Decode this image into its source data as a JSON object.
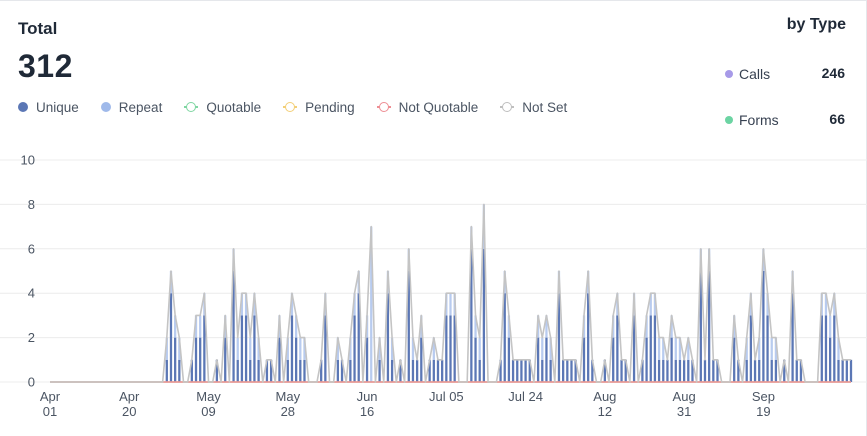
{
  "summary": {
    "label": "Total",
    "value": "312"
  },
  "by_type": {
    "title": "by Type",
    "items": [
      {
        "name": "Calls",
        "count": "246",
        "color": "#a79ae8"
      },
      {
        "name": "Forms",
        "count": "66",
        "color": "#6cd4a3"
      }
    ]
  },
  "legend": [
    {
      "label": "Unique",
      "color": "#5b77b5",
      "style": "dot"
    },
    {
      "label": "Repeat",
      "color": "#9fb9ea",
      "style": "dot"
    },
    {
      "label": "Quotable",
      "color": "#7fd6a2",
      "style": "ring"
    },
    {
      "label": "Pending",
      "color": "#f3cf77",
      "style": "ring"
    },
    {
      "label": "Not Quotable",
      "color": "#ee8e94",
      "style": "ring"
    },
    {
      "label": "Not Set",
      "color": "#bfbfbf",
      "style": "ring"
    }
  ],
  "chart_data": {
    "type": "bar",
    "yticks": [
      "10",
      "8",
      "6",
      "4",
      "2",
      "0"
    ],
    "ylim": [
      0,
      10
    ],
    "xticks": [
      {
        "day": 0,
        "line1": "Apr",
        "line2": "01"
      },
      {
        "day": 19,
        "line1": "Apr",
        "line2": "20"
      },
      {
        "day": 38,
        "line1": "May",
        "line2": "09"
      },
      {
        "day": 57,
        "line1": "May",
        "line2": "28"
      },
      {
        "day": 76,
        "line1": "Jun",
        "line2": "16"
      },
      {
        "day": 95,
        "line1": "Jul 05",
        "line2": ""
      },
      {
        "day": 114,
        "line1": "Jul 24",
        "line2": ""
      },
      {
        "day": 133,
        "line1": "Aug",
        "line2": "12"
      },
      {
        "day": 152,
        "line1": "Aug",
        "line2": "31"
      },
      {
        "day": 171,
        "line1": "Sep",
        "line2": "19"
      }
    ],
    "start_date": "Apr 01",
    "not_set_total": [
      0,
      0,
      0,
      0,
      0,
      0,
      0,
      0,
      0,
      0,
      0,
      0,
      0,
      0,
      0,
      0,
      0,
      0,
      0,
      0,
      0,
      0,
      0,
      0,
      0,
      0,
      0,
      0,
      2,
      5,
      3,
      2,
      0,
      0,
      1,
      3,
      3,
      4,
      0,
      0,
      1,
      0,
      3,
      0,
      6,
      2,
      4,
      4,
      2,
      4,
      2,
      0,
      1,
      1,
      0,
      3,
      0,
      2,
      4,
      3,
      2,
      2,
      0,
      0,
      0,
      1,
      4,
      0,
      0,
      2,
      1,
      0,
      2,
      4,
      5,
      0,
      3,
      7,
      0,
      2,
      0,
      5,
      2,
      0,
      1,
      0,
      6,
      2,
      1,
      3,
      0,
      1,
      2,
      1,
      1,
      4,
      4,
      4,
      0,
      0,
      0,
      7,
      3,
      2,
      8,
      0,
      0,
      0,
      1,
      5,
      3,
      1,
      1,
      1,
      1,
      1,
      0,
      3,
      2,
      3,
      2,
      0,
      5,
      1,
      1,
      1,
      1,
      0,
      3,
      5,
      1,
      0,
      0,
      1,
      0,
      3,
      4,
      1,
      1,
      0,
      4,
      0,
      1,
      3,
      4,
      4,
      2,
      2,
      1,
      3,
      2,
      2,
      1,
      2,
      1,
      0,
      6,
      1,
      6,
      1,
      1,
      0,
      0,
      0,
      3,
      1,
      0,
      2,
      4,
      1,
      2,
      6,
      4,
      2,
      2,
      0,
      1,
      0,
      5,
      1,
      1,
      0,
      0,
      0,
      0,
      4,
      4,
      3,
      4,
      2,
      1,
      1,
      1
    ],
    "unique": [
      0,
      0,
      0,
      0,
      0,
      0,
      0,
      0,
      0,
      0,
      0,
      0,
      0,
      0,
      0,
      0,
      0,
      0,
      0,
      0,
      0,
      0,
      0,
      0,
      0,
      0,
      0,
      0,
      1,
      4,
      2,
      1,
      0,
      0,
      1,
      2,
      2,
      3,
      0,
      0,
      1,
      0,
      2,
      0,
      5,
      1,
      3,
      3,
      1,
      3,
      1,
      0,
      1,
      1,
      0,
      2,
      0,
      1,
      3,
      2,
      1,
      1,
      0,
      0,
      0,
      1,
      3,
      0,
      0,
      1,
      1,
      0,
      1,
      3,
      4,
      0,
      2,
      0,
      0,
      1,
      0,
      4,
      1,
      0,
      1,
      0,
      5,
      1,
      1,
      2,
      0,
      1,
      1,
      1,
      1,
      3,
      3,
      3,
      0,
      0,
      0,
      6,
      2,
      1,
      6,
      0,
      0,
      0,
      1,
      4,
      2,
      1,
      1,
      1,
      1,
      1,
      0,
      2,
      1,
      2,
      1,
      0,
      4,
      1,
      1,
      1,
      1,
      0,
      2,
      4,
      1,
      0,
      0,
      1,
      0,
      2,
      3,
      1,
      1,
      0,
      3,
      0,
      1,
      2,
      3,
      3,
      1,
      1,
      1,
      2,
      1,
      1,
      1,
      1,
      1,
      0,
      5,
      1,
      5,
      1,
      1,
      0,
      0,
      0,
      2,
      1,
      0,
      1,
      3,
      1,
      1,
      5,
      3,
      1,
      1,
      0,
      1,
      0,
      4,
      1,
      1,
      0,
      0,
      0,
      0,
      3,
      3,
      2,
      3,
      1,
      1,
      1,
      1
    ],
    "repeat": [
      0,
      0,
      0,
      0,
      0,
      0,
      0,
      0,
      0,
      0,
      0,
      0,
      0,
      0,
      0,
      0,
      0,
      0,
      0,
      0,
      0,
      0,
      0,
      0,
      0,
      0,
      0,
      0,
      1,
      1,
      1,
      1,
      0,
      0,
      0,
      1,
      1,
      1,
      0,
      0,
      0,
      0,
      1,
      0,
      1,
      1,
      1,
      1,
      1,
      1,
      1,
      0,
      0,
      0,
      0,
      1,
      0,
      1,
      1,
      1,
      1,
      1,
      0,
      0,
      0,
      0,
      1,
      0,
      0,
      1,
      0,
      0,
      1,
      1,
      1,
      0,
      1,
      7,
      0,
      1,
      0,
      1,
      1,
      0,
      0,
      0,
      1,
      1,
      0,
      1,
      0,
      0,
      1,
      0,
      0,
      1,
      1,
      1,
      0,
      0,
      0,
      1,
      1,
      1,
      2,
      0,
      0,
      0,
      0,
      1,
      1,
      0,
      0,
      0,
      0,
      0,
      0,
      1,
      1,
      1,
      1,
      0,
      1,
      0,
      0,
      0,
      0,
      0,
      1,
      1,
      0,
      0,
      0,
      0,
      0,
      1,
      1,
      0,
      0,
      0,
      1,
      0,
      0,
      1,
      1,
      1,
      1,
      1,
      0,
      1,
      1,
      1,
      0,
      1,
      0,
      0,
      1,
      0,
      1,
      0,
      0,
      0,
      0,
      0,
      1,
      0,
      0,
      1,
      1,
      0,
      1,
      1,
      1,
      1,
      1,
      0,
      0,
      0,
      1,
      0,
      0,
      0,
      0,
      0,
      0,
      1,
      1,
      1,
      1,
      1,
      0,
      0,
      0
    ]
  }
}
